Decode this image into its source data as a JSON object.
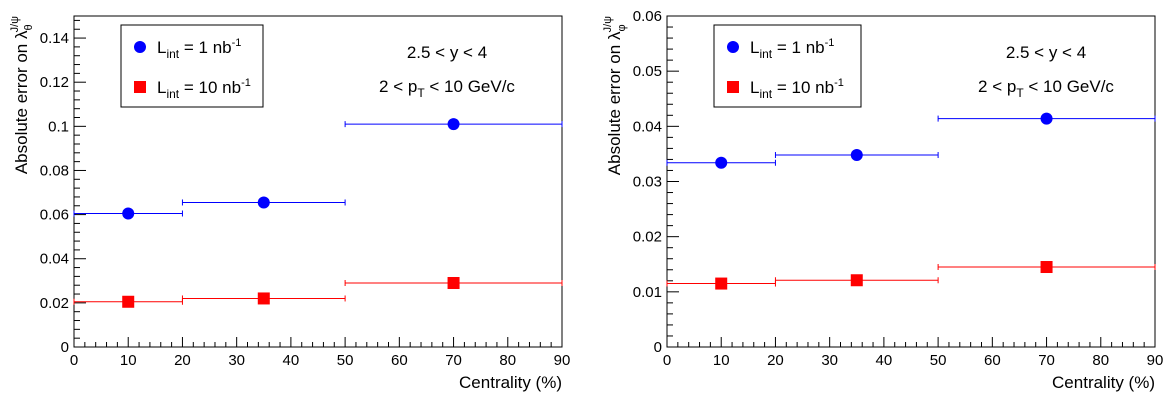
{
  "chart_data": [
    {
      "type": "scatter",
      "xlabel": "Centrality (%)",
      "ylabel_main": "Absolute error on λ",
      "ylabel_sub": "θ",
      "ylabel_sup": "J/ψ",
      "xlim": [
        0,
        90
      ],
      "ylim": [
        0,
        0.15
      ],
      "xticks": [
        0,
        10,
        20,
        30,
        40,
        50,
        60,
        70,
        80,
        90
      ],
      "yticks": [
        0,
        0.02,
        0.04,
        0.06,
        0.08,
        0.1,
        0.12,
        0.14
      ],
      "ytick_labels": [
        "0",
        "0.02",
        "0.04",
        "0.06",
        "0.08",
        "0.1",
        "0.12",
        "0.14"
      ],
      "annotations": {
        "line1": "2.5 < y < 4",
        "line2_pre": "2 < p",
        "line2_sub": "T",
        "line2_post": " < 10 GeV/c"
      },
      "series": [
        {
          "name_main": "L",
          "name_sub": "int",
          "name_value": " = 1 nb",
          "name_sup": "-1",
          "marker": "circle",
          "color": "#0000ff",
          "x": [
            10,
            35,
            70
          ],
          "xerr_low": [
            0,
            20,
            50
          ],
          "xerr_high": [
            20,
            50,
            90
          ],
          "y": [
            0.0605,
            0.0655,
            0.101
          ]
        },
        {
          "name_main": "L",
          "name_sub": "int",
          "name_value": " = 10 nb",
          "name_sup": "-1",
          "marker": "square",
          "color": "#ff0000",
          "x": [
            10,
            35,
            70
          ],
          "xerr_low": [
            0,
            20,
            50
          ],
          "xerr_high": [
            20,
            50,
            90
          ],
          "y": [
            0.0205,
            0.022,
            0.029
          ]
        }
      ]
    },
    {
      "type": "scatter",
      "xlabel": "Centrality (%)",
      "ylabel_main": "Absolute error on λ",
      "ylabel_sub": "φ",
      "ylabel_sup": "J/ψ",
      "xlim": [
        0,
        90
      ],
      "ylim": [
        0,
        0.06
      ],
      "xticks": [
        0,
        10,
        20,
        30,
        40,
        50,
        60,
        70,
        80,
        90
      ],
      "yticks": [
        0,
        0.01,
        0.02,
        0.03,
        0.04,
        0.05,
        0.06
      ],
      "ytick_labels": [
        "0",
        "0.01",
        "0.02",
        "0.03",
        "0.04",
        "0.05",
        "0.06"
      ],
      "annotations": {
        "line1": "2.5 < y < 4",
        "line2_pre": "2 < p",
        "line2_sub": "T",
        "line2_post": " < 10 GeV/c"
      },
      "series": [
        {
          "name_main": "L",
          "name_sub": "int",
          "name_value": " = 1 nb",
          "name_sup": "-1",
          "marker": "circle",
          "color": "#0000ff",
          "x": [
            10,
            35,
            70
          ],
          "xerr_low": [
            0,
            20,
            50
          ],
          "xerr_high": [
            20,
            50,
            90
          ],
          "y": [
            0.0334,
            0.0348,
            0.0414
          ]
        },
        {
          "name_main": "L",
          "name_sub": "int",
          "name_value": " = 10 nb",
          "name_sup": "-1",
          "marker": "square",
          "color": "#ff0000",
          "x": [
            10,
            35,
            70
          ],
          "xerr_low": [
            0,
            20,
            50
          ],
          "xerr_high": [
            20,
            50,
            90
          ],
          "y": [
            0.0115,
            0.0121,
            0.0145
          ]
        }
      ]
    }
  ]
}
